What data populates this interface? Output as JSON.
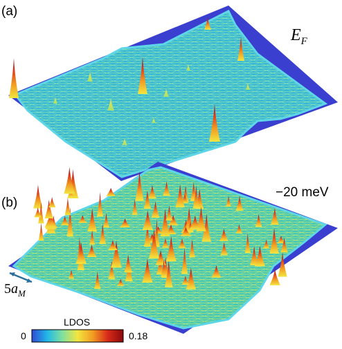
{
  "panels": [
    {
      "label": "(a)",
      "energy_main": "E",
      "energy_sub": "F"
    },
    {
      "label": "(b)",
      "energy_text": "−20 meV"
    }
  ],
  "scale_bar": {
    "coef": "5",
    "symbol": "a",
    "sub": "M"
  },
  "colorbar": {
    "title": "LDOS",
    "min_label": "0",
    "max_label": "0.18",
    "min": 0,
    "max": 0.18,
    "colors": [
      "#2f4bd6",
      "#22b8e8",
      "#7ee0a0",
      "#f2e640",
      "#f29a22",
      "#d72a1a",
      "#8a0a0a"
    ]
  }
}
